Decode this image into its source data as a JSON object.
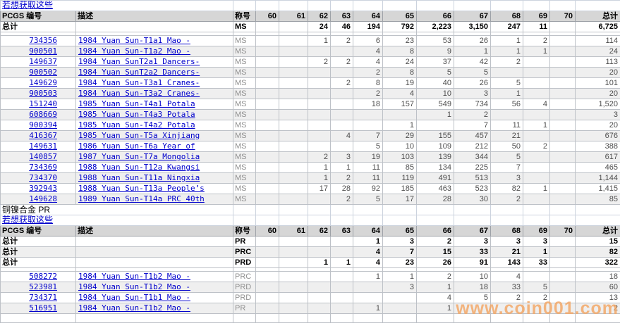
{
  "columns": {
    "pcgs": "PCGS 编号",
    "desc": "描述",
    "designation": "称号",
    "grades": [
      "60",
      "61",
      "62",
      "63",
      "64",
      "65",
      "66",
      "67",
      "68",
      "69",
      "70"
    ],
    "total": "总计",
    "totals_label": "总计"
  },
  "colors": {
    "link_blue": "#0000cc",
    "header_bg": "#d6d6d6",
    "stripe_bg": "#efefef",
    "watermark_orange": "#f3a664"
  },
  "watermark": {
    "text": "www.coin001.com"
  },
  "sections": [
    {
      "title": null,
      "link": "若想获取这些",
      "totals": [
        {
          "label": "总计",
          "designation": "MS",
          "grades": {
            "62": "24",
            "63": "46",
            "64": "194",
            "65": "792",
            "66": "2,223",
            "67": "3,150",
            "68": "247",
            "69": "11"
          },
          "total": "6,725"
        }
      ],
      "rows": [
        {
          "pcgs": "734356",
          "desc": "1984 Yuan Sun-T1a1 Mao -",
          "designation": "MS",
          "grades": {
            "62": "1",
            "63": "2",
            "64": "6",
            "65": "23",
            "66": "53",
            "67": "26",
            "68": "1",
            "69": "2"
          },
          "total": "114"
        },
        {
          "pcgs": "900501",
          "desc": "1984 Yuan Sun-T1a2 Mao -",
          "designation": "MS",
          "grades": {
            "64": "4",
            "65": "8",
            "66": "9",
            "67": "1",
            "68": "1",
            "69": "1"
          },
          "total": "24"
        },
        {
          "pcgs": "149637",
          "desc": "1984 Yuan SunT2a1 Dancers-",
          "designation": "MS",
          "grades": {
            "62": "2",
            "63": "2",
            "64": "4",
            "65": "24",
            "66": "37",
            "67": "42",
            "68": "2"
          },
          "total": "113"
        },
        {
          "pcgs": "900502",
          "desc": "1984 Yuan SunT2a2 Dancers-",
          "designation": "MS",
          "grades": {
            "64": "2",
            "65": "8",
            "66": "5",
            "67": "5"
          },
          "total": "20"
        },
        {
          "pcgs": "149629",
          "desc": "1984 Yuan Sun-T3a1 Cranes-",
          "designation": "MS",
          "grades": {
            "63": "2",
            "64": "8",
            "65": "19",
            "66": "40",
            "67": "26",
            "68": "5"
          },
          "total": "101"
        },
        {
          "pcgs": "900503",
          "desc": "1984 Yuan Sun-T3a2 Cranes-",
          "designation": "MS",
          "grades": {
            "64": "2",
            "65": "4",
            "66": "10",
            "67": "3",
            "68": "1"
          },
          "total": "20"
        },
        {
          "pcgs": "151240",
          "desc": "1985 Yuan Sun-T4a1 Potala",
          "designation": "MS",
          "grades": {
            "64": "18",
            "65": "157",
            "66": "549",
            "67": "734",
            "68": "56",
            "69": "4"
          },
          "total": "1,520"
        },
        {
          "pcgs": "608669",
          "desc": "1985 Yuan Sun-T4a3 Potala",
          "designation": "MS",
          "grades": {
            "66": "1",
            "67": "2"
          },
          "total": "3"
        },
        {
          "pcgs": "900394",
          "desc": "1985 Yuan Sun-T4a2 Potala",
          "designation": "MS",
          "grades": {
            "65": "1",
            "67": "7",
            "68": "11",
            "69": "1"
          },
          "total": "20"
        },
        {
          "pcgs": "416367",
          "desc": "1985 Yuan Sun-T5a Xinjiang",
          "designation": "MS",
          "grades": {
            "63": "4",
            "64": "7",
            "65": "29",
            "66": "155",
            "67": "457",
            "68": "21"
          },
          "total": "676"
        },
        {
          "pcgs": "149631",
          "desc": "1986 Yuan Sun-T6a Year of",
          "designation": "MS",
          "grades": {
            "64": "5",
            "65": "10",
            "66": "109",
            "67": "212",
            "68": "50",
            "69": "2"
          },
          "total": "388"
        },
        {
          "pcgs": "140857",
          "desc": "1987 Yuan Sun-T7a Mongolia",
          "designation": "MS",
          "grades": {
            "62": "2",
            "63": "3",
            "64": "19",
            "65": "103",
            "66": "139",
            "67": "344",
            "68": "5"
          },
          "total": "617"
        },
        {
          "pcgs": "734369",
          "desc": "1988 Yuan Sun-T12a Kwangsi",
          "designation": "MS",
          "grades": {
            "62": "1",
            "63": "1",
            "64": "11",
            "65": "85",
            "66": "134",
            "67": "225",
            "68": "7"
          },
          "total": "465"
        },
        {
          "pcgs": "734370",
          "desc": "1988 Yuan Sun-T11a Ningxia",
          "designation": "MS",
          "grades": {
            "62": "1",
            "63": "2",
            "64": "11",
            "65": "119",
            "66": "491",
            "67": "513",
            "68": "3"
          },
          "total": "1,144"
        },
        {
          "pcgs": "392943",
          "desc": "1988 Yuan Sun-T13a People’s",
          "designation": "MS",
          "grades": {
            "62": "17",
            "63": "28",
            "64": "92",
            "65": "185",
            "66": "463",
            "67": "523",
            "68": "82",
            "69": "1"
          },
          "total": "1,415"
        },
        {
          "pcgs": "149628",
          "desc": "1989 Yuan Sun-T14a PRC 40th",
          "designation": "MS",
          "grades": {
            "63": "2",
            "64": "5",
            "65": "17",
            "66": "28",
            "67": "30",
            "68": "2"
          },
          "total": "85"
        }
      ]
    },
    {
      "title": "铜镍合金  PR",
      "link": "若想获取这些",
      "totals": [
        {
          "label": "总计",
          "designation": "PR",
          "grades": {
            "64": "1",
            "65": "3",
            "66": "2",
            "67": "3",
            "68": "3",
            "69": "3"
          },
          "total": "15"
        },
        {
          "label": "总计",
          "designation": "PRC",
          "grades": {
            "64": "4",
            "65": "7",
            "66": "15",
            "67": "33",
            "68": "21",
            "69": "1"
          },
          "total": "82"
        },
        {
          "label": "总计",
          "designation": "PRD",
          "grades": {
            "62": "1",
            "63": "1",
            "64": "4",
            "65": "23",
            "66": "26",
            "67": "91",
            "68": "143",
            "69": "33"
          },
          "total": "322"
        }
      ],
      "rows": [
        {
          "pcgs": "508272",
          "desc": "1984 Yuan Sun-T1b2 Mao -",
          "designation": "PRC",
          "grades": {
            "64": "1",
            "65": "1",
            "66": "2",
            "67": "10",
            "68": "4"
          },
          "total": "18"
        },
        {
          "pcgs": "523981",
          "desc": "1984 Yuan Sun-T1b2 Mao -",
          "designation": "PRD",
          "grades": {
            "65": "3",
            "66": "1",
            "67": "18",
            "68": "33",
            "69": "5"
          },
          "total": "60"
        },
        {
          "pcgs": "734371",
          "desc": "1984 Yuan Sun-T1b1 Mao -",
          "designation": "PRD",
          "grades": {
            "66": "4",
            "67": "5",
            "68": "2",
            "69": "2"
          },
          "total": "13"
        },
        {
          "pcgs": "516951",
          "desc": "1984 Yuan Sun-T1b2 Mao -",
          "designation": "PR",
          "grades": {
            "64": "1",
            "66": "1"
          },
          "total": "2"
        }
      ]
    }
  ]
}
